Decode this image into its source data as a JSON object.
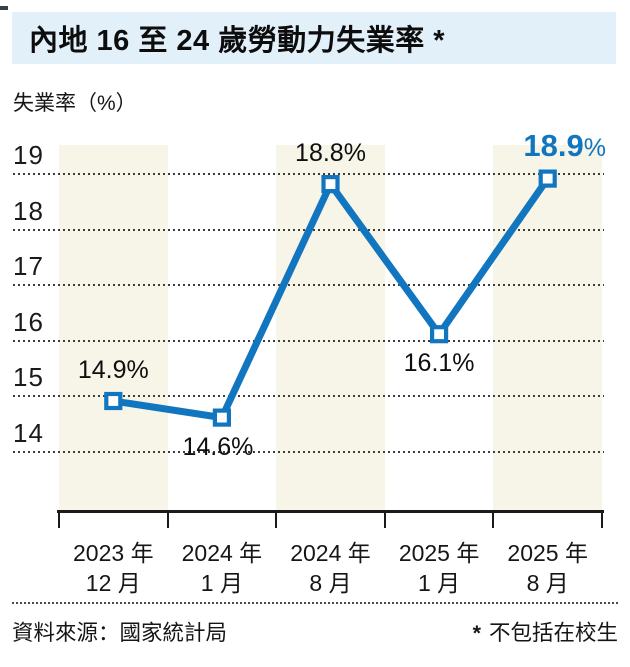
{
  "page": {
    "title": "內地 16 至 24 歲勞動力失業率 *",
    "y_axis_unit": "失業率（%）",
    "source": "資料來源：國家統計局",
    "footnote_marker": "*",
    "footnote_text": "不包括在校生"
  },
  "colors": {
    "accent_blue": "#1176bf",
    "title_band_bg": "#e2f0f9",
    "column_band_bg": "#f7f5e8",
    "gridline": "#3c3c3c",
    "text": "#111111"
  },
  "chart_data": {
    "type": "line",
    "title": "內地 16 至 24 歲勞動力失業率 *",
    "ylabel": "失業率（%）",
    "categories": [
      {
        "year": "2023 年",
        "month": "12 月"
      },
      {
        "year": "2024 年",
        "month": "1 月"
      },
      {
        "year": "2024 年",
        "month": "8 月"
      },
      {
        "year": "2025 年",
        "month": "1 月"
      },
      {
        "year": "2025 年",
        "month": "8 月"
      }
    ],
    "values": [
      14.9,
      14.6,
      18.8,
      16.1,
      18.9
    ],
    "point_labels": [
      "14.9%",
      "14.6%",
      "18.8%",
      "16.1%",
      "18.9%"
    ],
    "label_side": [
      "above",
      "below",
      "above",
      "below",
      "above"
    ],
    "highlight_index": 4,
    "y_ticks": [
      19,
      18,
      17,
      16,
      15,
      14
    ],
    "ylim": [
      13.4,
      19.5
    ],
    "grid": "horizontal-dotted",
    "legend": "none",
    "marker": "open-square",
    "line_color": "#1176bf",
    "source": "資料來源：國家統計局",
    "footnote": "* 不包括在校生"
  }
}
